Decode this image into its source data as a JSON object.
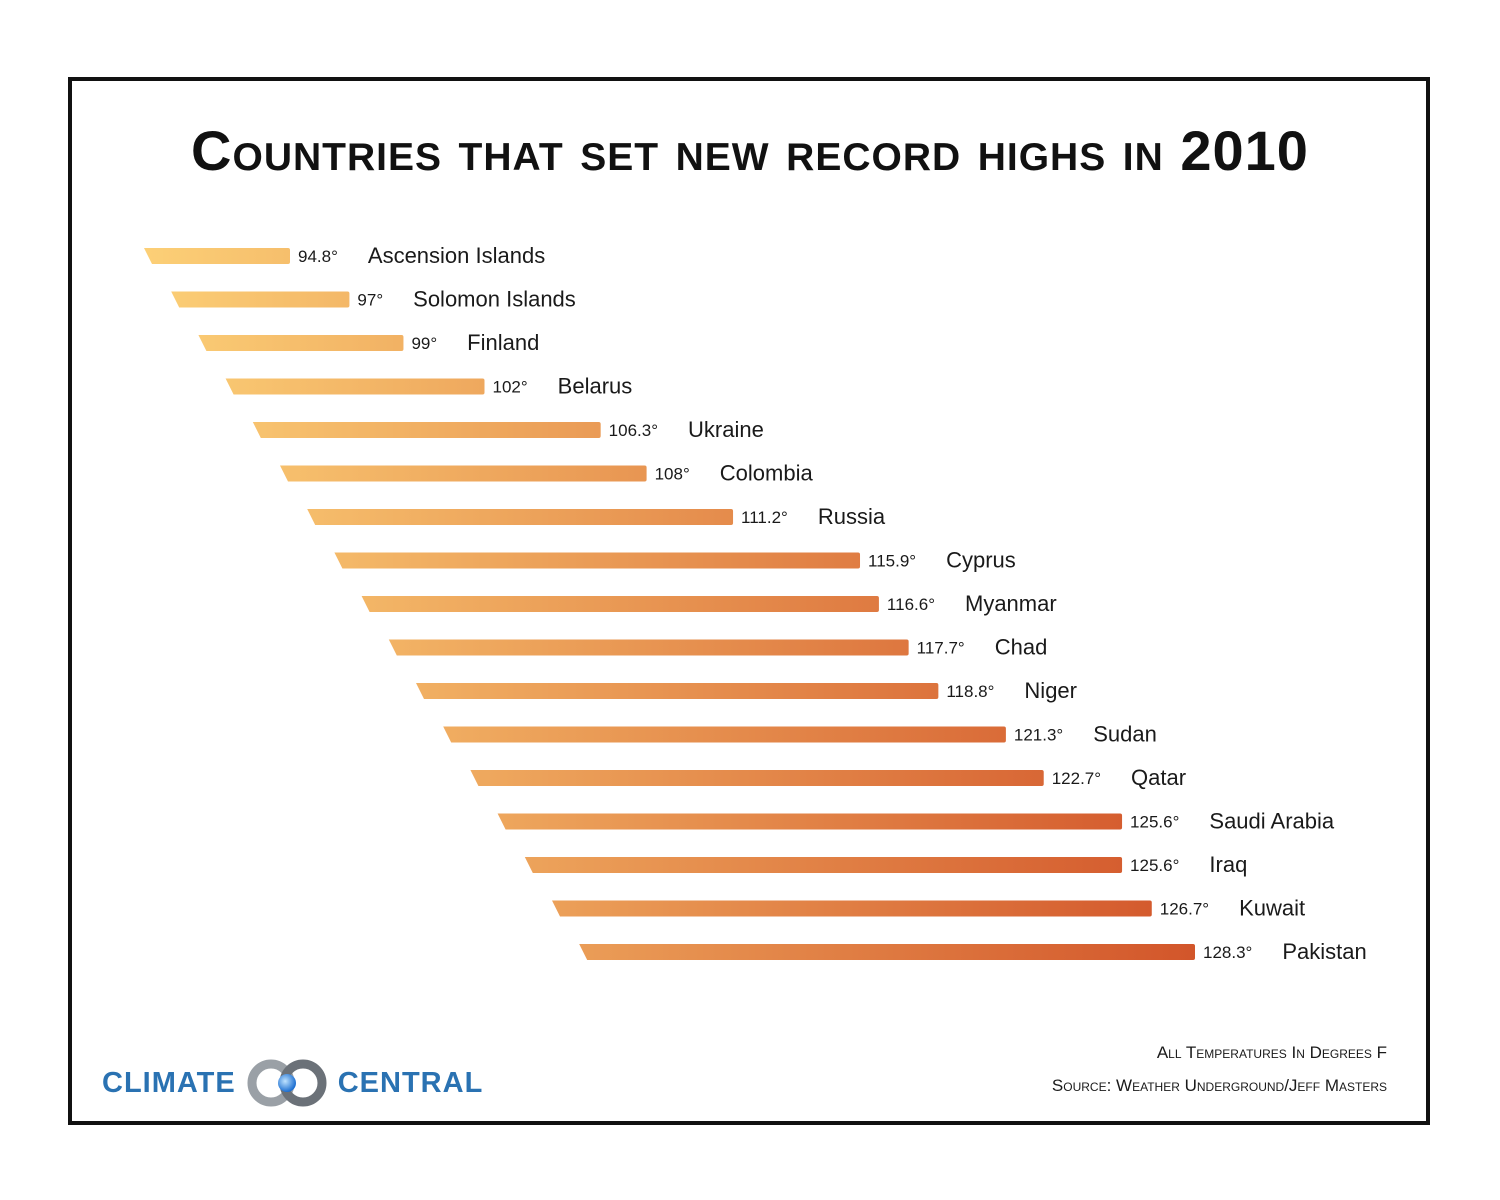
{
  "chart_data": {
    "type": "bar",
    "title": "Countries that set new record highs in 2010",
    "categories": [
      "Ascension Islands",
      "Solomon Islands",
      "Finland",
      "Belarus",
      "Ukraine",
      "Colombia",
      "Russia",
      "Cyprus",
      "Myanmar",
      "Chad",
      "Niger",
      "Sudan",
      "Qatar",
      "Saudi Arabia",
      "Iraq",
      "Kuwait",
      "Pakistan"
    ],
    "values": [
      94.8,
      97,
      99,
      102,
      106.3,
      108,
      111.2,
      115.9,
      116.6,
      117.7,
      118.8,
      121.3,
      122.7,
      125.6,
      125.6,
      126.7,
      128.3
    ],
    "value_labels": [
      "94.8°",
      "97°",
      "99°",
      "102°",
      "106.3°",
      "108°",
      "111.2°",
      "115.9°",
      "116.6°",
      "117.7°",
      "118.8°",
      "121.3°",
      "122.7°",
      "125.6°",
      "125.6°",
      "126.7°",
      "128.3°"
    ],
    "orientation": "horizontal",
    "colors": {
      "low": "#fcd077",
      "high": "#d2552a"
    }
  },
  "notes": {
    "units": "All Temperatures In Degrees F",
    "source": "Source: Weather Underground/Jeff Masters"
  },
  "logo": {
    "left": "CLIMATE",
    "right": "CENTRAL"
  }
}
